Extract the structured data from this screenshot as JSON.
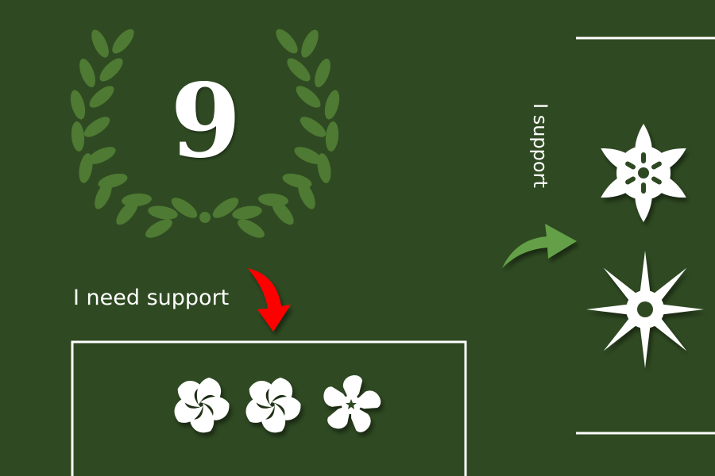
{
  "badge": {
    "number": "9",
    "wreath_icon": "laurel-wreath-icon",
    "wreath_color": "#4e7a33"
  },
  "need_support": {
    "label": "I need support",
    "arrow_icon": "curved-arrow-down-icon",
    "arrow_color": "#ff0000",
    "flowers": [
      "pinwheel-flower-icon",
      "pinwheel-flower-icon",
      "five-petal-flower-icon"
    ]
  },
  "support": {
    "label": "I support",
    "arrow_icon": "curved-arrow-right-icon",
    "arrow_color": "#64a046",
    "flowers": [
      "six-petal-flower-icon",
      "eight-point-star-flower-icon"
    ]
  },
  "colors": {
    "background": "#2f4a22",
    "foreground": "#ffffff"
  }
}
